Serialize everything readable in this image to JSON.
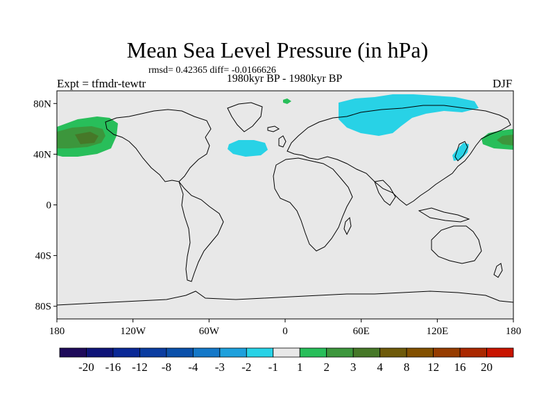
{
  "title": "Mean Sea Level Pressure (in hPa)",
  "stats": "rmsd= 0.42365 diff= -0.0166626",
  "subtitle": "1980kyr BP - 1980kyr BP",
  "experiment": "Expt = tfmdr-tewtr",
  "season": "DJF",
  "map": {
    "background_color": "#e8e8e8",
    "lon_range": [
      -180,
      180
    ],
    "lat_range": [
      -90,
      90
    ],
    "lon_ticks": [
      {
        "value": -180,
        "label": "180"
      },
      {
        "value": -120,
        "label": "120W"
      },
      {
        "value": -60,
        "label": "60W"
      },
      {
        "value": 0,
        "label": "0"
      },
      {
        "value": 60,
        "label": "60E"
      },
      {
        "value": 120,
        "label": "120E"
      },
      {
        "value": 180,
        "label": "180"
      }
    ],
    "lat_ticks": [
      {
        "value": 80,
        "label": "80N"
      },
      {
        "value": 40,
        "label": "40N"
      },
      {
        "value": 0,
        "label": "0"
      },
      {
        "value": -40,
        "label": "40S"
      },
      {
        "value": -80,
        "label": "80S"
      }
    ]
  },
  "colorbar": {
    "colors": [
      "#1e0a5a",
      "#0f1478",
      "#0a2896",
      "#0a3ca0",
      "#0a50aa",
      "#1478c8",
      "#1ea0dc",
      "#28d2e6",
      "#e8e8e8",
      "#28be5a",
      "#3c963c",
      "#467828",
      "#6e5a0a",
      "#825000",
      "#963c00",
      "#aa2800",
      "#c81400"
    ],
    "labels": [
      "-20",
      "-16",
      "-12",
      "-8",
      "-4",
      "-3",
      "-2",
      "-1",
      "1",
      "2",
      "3",
      "4",
      "8",
      "12",
      "16",
      "20"
    ]
  }
}
